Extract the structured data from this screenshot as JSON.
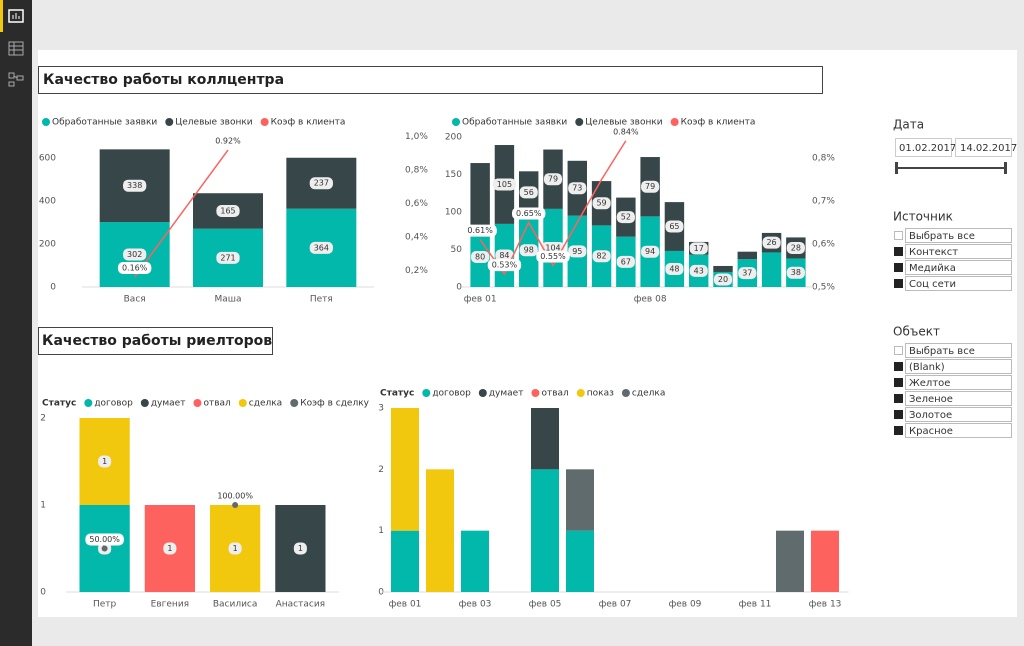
{
  "sections": [
    "Качество работы коллцентра",
    "Качество работы риелторов"
  ],
  "chart_data": [
    {
      "type": "combo",
      "categories": [
        "Вася",
        "Маша",
        "Петя"
      ],
      "series": [
        {
          "name": "Обработанные заявки",
          "color": "#01b8aa",
          "values": [
            302,
            271,
            364
          ],
          "value_labels": [
            "302",
            "271",
            "364"
          ]
        },
        {
          "name": "Целевые звонки",
          "color": "#374649",
          "values": [
            338,
            165,
            237
          ],
          "value_labels": [
            "338",
            "165",
            "237"
          ]
        },
        {
          "name": "Коэф в клиента",
          "color": "#fd625e",
          "type": "line",
          "axis": "y2",
          "values": [
            0.16,
            0.92,
            null
          ],
          "value_labels": [
            "0.16%",
            "0.92%",
            null
          ]
        }
      ],
      "ylim": [
        0,
        730
      ],
      "yticks": [
        0,
        200,
        400,
        600
      ],
      "y2lim": [
        0.1,
        1.04
      ],
      "y2ticks": [
        {
          "value": 0.2,
          "label": "0,2%"
        },
        {
          "value": 0.4,
          "label": "0,4%"
        },
        {
          "value": 0.6,
          "label": "0,6%"
        },
        {
          "value": 0.8,
          "label": "0,8%"
        },
        {
          "value": 1.0,
          "label": "1,0%"
        }
      ]
    },
    {
      "type": "combo",
      "categories": [
        "фев 01",
        null,
        null,
        null,
        null,
        null,
        null,
        "фев 08",
        null,
        null,
        null,
        null,
        null,
        null
      ],
      "series": [
        {
          "name": "Обработанные заявки",
          "color": "#01b8aa",
          "values": [
            80,
            84,
            98,
            104,
            95,
            82,
            67,
            94,
            48,
            43,
            20,
            37,
            46,
            38
          ],
          "value_labels": [
            "80",
            "84",
            "98",
            "104",
            "95",
            "82",
            "67",
            "94",
            "48",
            "43",
            "20",
            "37",
            null,
            "38"
          ]
        },
        {
          "name": "Целевые звонки",
          "color": "#374649",
          "values": [
            85,
            105,
            56,
            79,
            73,
            59,
            52,
            79,
            65,
            17,
            8,
            10,
            26,
            28
          ],
          "value_labels": [
            null,
            "105",
            "56",
            "79",
            "73",
            "59",
            "52",
            "79",
            "65",
            "17",
            null,
            null,
            "26",
            "28"
          ]
        },
        {
          "name": "Коэф в клиента",
          "color": "#fd625e",
          "type": "line",
          "axis": "y2",
          "values": [
            0.61,
            0.53,
            0.65,
            0.55,
            0.65,
            0.75,
            0.84,
            null,
            null,
            null,
            null,
            null,
            null,
            null
          ],
          "value_labels": [
            "0.61%",
            "0.53%",
            "0.65%",
            "0.55%",
            null,
            null,
            "0.84%",
            null,
            null,
            null,
            null,
            null,
            null,
            null
          ]
        }
      ],
      "ylim": [
        0,
        209
      ],
      "yticks": [
        0,
        50,
        100,
        150,
        200
      ],
      "y2lim": [
        0.5,
        0.865
      ],
      "y2ticks": [
        {
          "value": 0.5,
          "label": "0,5%"
        },
        {
          "value": 0.6,
          "label": "0,6%"
        },
        {
          "value": 0.7,
          "label": "0,7%"
        },
        {
          "value": 0.8,
          "label": "0,8%"
        }
      ]
    },
    {
      "type": "combo",
      "legend_title": "Статус",
      "categories": [
        "Петр",
        "Евгения",
        "Василиса",
        "Анастасия"
      ],
      "series": [
        {
          "name": "договор",
          "color": "#01b8aa",
          "values": [
            1,
            null,
            null,
            null
          ],
          "value_labels": [
            "1",
            null,
            null,
            null
          ]
        },
        {
          "name": "думает",
          "color": "#374649",
          "values": [
            null,
            null,
            null,
            1
          ],
          "value_labels": [
            null,
            null,
            null,
            "1"
          ]
        },
        {
          "name": "отвал",
          "color": "#fd625e",
          "values": [
            null,
            1,
            null,
            null
          ],
          "value_labels": [
            null,
            "1",
            null,
            null
          ]
        },
        {
          "name": "сделка",
          "color": "#f2c80f",
          "values": [
            1,
            null,
            1,
            null
          ],
          "value_labels": [
            "1",
            null,
            "1",
            null
          ]
        },
        {
          "name": "Коэф в сделку",
          "color": "#5f6b6d",
          "type": "line",
          "axis": "y2",
          "markers": true,
          "values": [
            50,
            null,
            100,
            null
          ],
          "value_labels": [
            "50.00%",
            null,
            "100.00%",
            null
          ]
        }
      ],
      "ylim": [
        0,
        2
      ],
      "yticks": [
        0,
        1,
        2
      ],
      "y2lim": [
        0,
        200
      ]
    },
    {
      "type": "bar",
      "legend_title": "Статус",
      "categories": [
        "фев 01",
        null,
        "фев 03",
        null,
        "фев 05",
        null,
        "фев 07",
        null,
        "фев 09",
        null,
        "фев 11",
        null,
        "фев 13"
      ],
      "series": [
        {
          "name": "договор",
          "color": "#01b8aa",
          "values": [
            1,
            null,
            1,
            null,
            2,
            1,
            null,
            null,
            null,
            null,
            null,
            null,
            null
          ]
        },
        {
          "name": "думает",
          "color": "#374649",
          "values": [
            null,
            null,
            null,
            null,
            1,
            null,
            null,
            null,
            null,
            null,
            null,
            null,
            null
          ]
        },
        {
          "name": "отвал",
          "color": "#fd625e",
          "values": [
            null,
            null,
            null,
            null,
            null,
            null,
            null,
            null,
            null,
            null,
            null,
            null,
            1
          ]
        },
        {
          "name": "показ",
          "color": "#f2c80f",
          "values": [
            2,
            2,
            null,
            null,
            null,
            null,
            null,
            null,
            null,
            null,
            null,
            null,
            null
          ]
        },
        {
          "name": "сделка",
          "color": "#5f6b6d",
          "values": [
            null,
            null,
            null,
            null,
            null,
            1,
            null,
            null,
            null,
            null,
            null,
            1,
            null
          ]
        }
      ],
      "ylim": [
        0,
        3
      ],
      "yticks": [
        0,
        1,
        2,
        3
      ]
    }
  ],
  "slicers": [
    {
      "title": "Дата",
      "values": [
        "01.02.2017",
        "14.02.2017"
      ]
    },
    {
      "title": "Источник",
      "items": [
        "Выбрать все",
        "Контекст",
        "Медийка",
        "Соц сети"
      ]
    },
    {
      "title": "Объект",
      "items": [
        "Выбрать все",
        "(Blank)",
        "Желтое",
        "Зеленое",
        "Золотое",
        "Красное"
      ]
    }
  ]
}
